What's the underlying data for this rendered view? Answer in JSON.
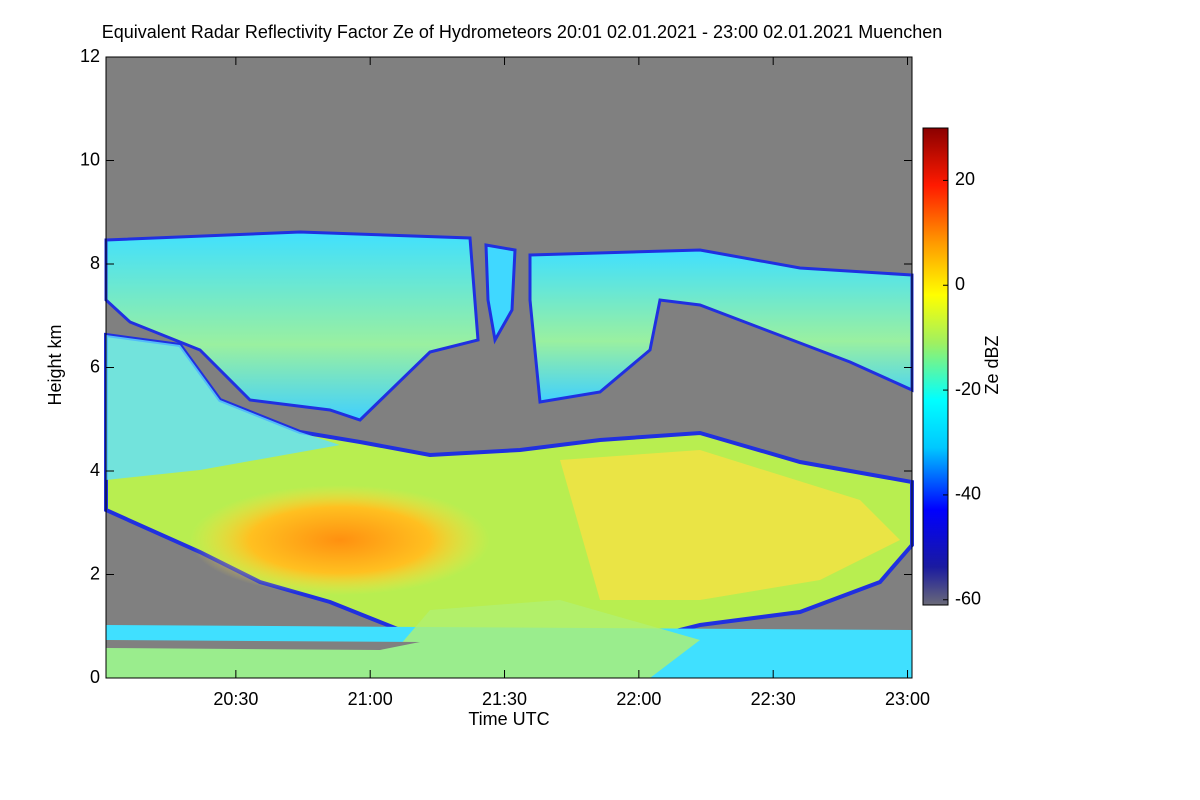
{
  "chart_data": {
    "type": "heatmap",
    "title": "Equivalent Radar Reflectivity Factor Ze of Hydrometeors   20:01 02.01.2021 - 23:00 02.01.2021 Muenchen",
    "xlabel": "Time UTC",
    "ylabel": "Height km",
    "xlim": [
      1,
      181
    ],
    "xticks": [
      {
        "value": 30,
        "label": "20:30"
      },
      {
        "value": 60,
        "label": "21:00"
      },
      {
        "value": 90,
        "label": "21:30"
      },
      {
        "value": 120,
        "label": "22:00"
      },
      {
        "value": 150,
        "label": "22:30"
      },
      {
        "value": 180,
        "label": "23:00"
      }
    ],
    "ylim": [
      0,
      12
    ],
    "yticks": [
      0,
      2,
      4,
      6,
      8,
      10,
      12
    ],
    "colorbar_label": "Ze dBZ",
    "clim": [
      -61,
      30
    ],
    "cticks": [
      20,
      0,
      -20,
      -40,
      -60
    ]
  }
}
